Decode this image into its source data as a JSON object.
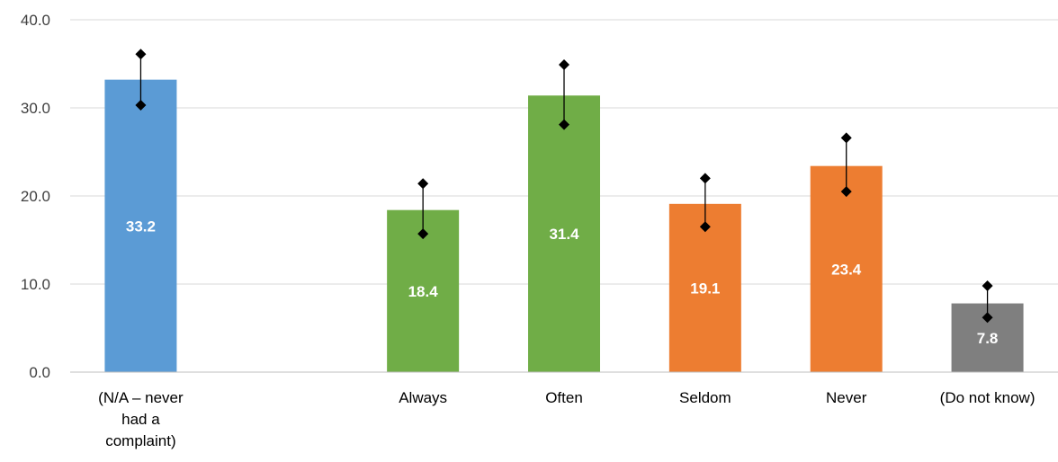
{
  "chart_data": {
    "type": "bar",
    "title": "",
    "xlabel": "",
    "ylabel": "",
    "ylim": [
      0,
      40
    ],
    "yticks": [
      "0.0",
      "10.0",
      "20.0",
      "30.0",
      "40.0"
    ],
    "grid": true,
    "legend": "none",
    "categories": [
      [
        "(N/A – never",
        "had a",
        "complaint)"
      ],
      [],
      [
        "Always"
      ],
      [
        "Often"
      ],
      [
        "Seldom"
      ],
      [
        "Never"
      ],
      [
        "(Do not know)"
      ]
    ],
    "values": [
      33.2,
      null,
      18.4,
      31.4,
      19.1,
      23.4,
      7.8
    ],
    "value_labels": [
      "33.2",
      "",
      "18.4",
      "31.4",
      "19.1",
      "23.4",
      "7.8"
    ],
    "error_low": [
      30.3,
      null,
      15.7,
      28.1,
      16.5,
      20.5,
      6.2
    ],
    "error_high": [
      36.1,
      null,
      21.4,
      34.9,
      22.0,
      26.6,
      9.8
    ],
    "colors": [
      "#5B9BD5",
      null,
      "#70AD47",
      "#70AD47",
      "#ED7D31",
      "#ED7D31",
      "#7F7F7F"
    ],
    "grid_color": "#D9D9D9",
    "axis_color": "#BFBFBF",
    "marker_color": "#000000"
  }
}
